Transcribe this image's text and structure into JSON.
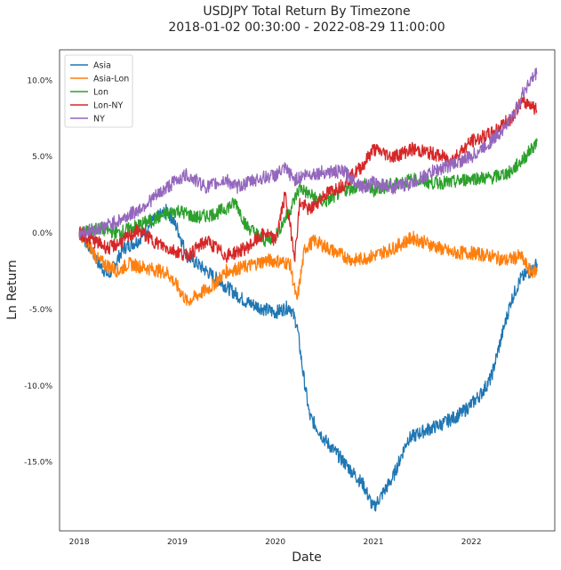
{
  "chart_data": {
    "type": "line",
    "title": "USDJPY Total Return By Timezone",
    "subtitle": "2018-01-02 00:30:00 - 2022-08-29 11:00:00",
    "xlabel": "Date",
    "ylabel": "Ln Return",
    "xlim": [
      2017.8,
      2022.85
    ],
    "ylim": [
      -19.5,
      12.0
    ],
    "x_ticks": [
      2018,
      2019,
      2020,
      2021,
      2022
    ],
    "x_tick_labels": [
      "2018",
      "2019",
      "2020",
      "2021",
      "2022"
    ],
    "y_ticks": [
      10,
      5,
      0,
      -5,
      -10,
      -15
    ],
    "y_tick_labels": [
      "10.0%",
      "5.0%",
      "0.0%",
      "-5.0%",
      "-10.0%",
      "-15.0%"
    ],
    "grid": false,
    "legend_position": "top-left",
    "series": [
      {
        "name": "Asia",
        "color": "#1f77b4",
        "x": [
          2018.0,
          2018.1,
          2018.2,
          2018.3,
          2018.45,
          2018.6,
          2018.75,
          2018.9,
          2019.0,
          2019.1,
          2019.3,
          2019.5,
          2019.7,
          2019.9,
          2020.0,
          2020.15,
          2020.22,
          2020.28,
          2020.35,
          2020.5,
          2020.7,
          2020.9,
          2021.0,
          2021.2,
          2021.35,
          2021.5,
          2021.7,
          2021.9,
          2022.0,
          2022.1,
          2022.2,
          2022.3,
          2022.4,
          2022.5,
          2022.6,
          2022.67
        ],
        "y": [
          0.0,
          -0.8,
          -2.0,
          -2.8,
          -1.0,
          -0.5,
          0.8,
          1.5,
          0.3,
          -1.5,
          -2.5,
          -3.5,
          -4.5,
          -5.0,
          -5.2,
          -4.8,
          -6.0,
          -9.0,
          -12.0,
          -13.5,
          -15.0,
          -16.5,
          -18.0,
          -16.0,
          -13.5,
          -13.0,
          -12.5,
          -11.8,
          -11.2,
          -10.5,
          -9.5,
          -7.0,
          -4.5,
          -3.0,
          -2.5,
          -2.0
        ]
      },
      {
        "name": "Asia-Lon",
        "color": "#ff7f0e",
        "x": [
          2018.0,
          2018.1,
          2018.2,
          2018.4,
          2018.5,
          2018.7,
          2018.9,
          2019.0,
          2019.1,
          2019.35,
          2019.5,
          2019.7,
          2019.9,
          2020.0,
          2020.15,
          2020.22,
          2020.3,
          2020.4,
          2020.6,
          2020.8,
          2021.0,
          2021.2,
          2021.4,
          2021.6,
          2021.8,
          2022.0,
          2022.2,
          2022.35,
          2022.5,
          2022.6,
          2022.67
        ],
        "y": [
          0.0,
          -0.8,
          -1.8,
          -2.5,
          -2.0,
          -2.3,
          -2.6,
          -3.5,
          -4.5,
          -3.5,
          -2.5,
          -2.2,
          -1.8,
          -1.8,
          -2.0,
          -4.5,
          -1.0,
          -0.5,
          -1.2,
          -1.8,
          -1.5,
          -1.0,
          -0.3,
          -0.8,
          -1.3,
          -1.3,
          -1.5,
          -1.8,
          -1.5,
          -2.5,
          -2.5
        ]
      },
      {
        "name": "Lon",
        "color": "#2ca02c",
        "x": [
          2018.0,
          2018.2,
          2018.4,
          2018.6,
          2018.8,
          2019.0,
          2019.2,
          2019.4,
          2019.6,
          2019.7,
          2019.9,
          2020.0,
          2020.15,
          2020.25,
          2020.35,
          2020.5,
          2020.7,
          2020.9,
          2021.0,
          2021.2,
          2021.4,
          2021.6,
          2021.8,
          2022.0,
          2022.2,
          2022.4,
          2022.55,
          2022.67
        ],
        "y": [
          0.0,
          0.3,
          0.0,
          0.5,
          1.0,
          1.5,
          1.0,
          1.3,
          2.0,
          0.5,
          -0.5,
          -0.2,
          1.5,
          3.0,
          2.5,
          2.0,
          2.8,
          3.2,
          2.8,
          3.2,
          3.5,
          3.3,
          3.3,
          3.6,
          3.6,
          4.0,
          5.0,
          6.0
        ]
      },
      {
        "name": "Lon-NY",
        "color": "#d62728",
        "x": [
          2018.0,
          2018.15,
          2018.3,
          2018.45,
          2018.6,
          2018.75,
          2018.9,
          2019.0,
          2019.1,
          2019.3,
          2019.5,
          2019.7,
          2019.9,
          2020.0,
          2020.1,
          2020.2,
          2020.25,
          2020.35,
          2020.5,
          2020.7,
          2020.9,
          2021.0,
          2021.2,
          2021.4,
          2021.6,
          2021.8,
          2022.0,
          2022.2,
          2022.3,
          2022.4,
          2022.5,
          2022.6,
          2022.67
        ],
        "y": [
          0.0,
          -0.5,
          -1.0,
          -0.5,
          0.2,
          -0.5,
          -1.0,
          -1.2,
          -1.5,
          -0.5,
          -1.5,
          -1.0,
          0.0,
          -0.5,
          2.5,
          -1.5,
          2.0,
          1.5,
          2.5,
          3.2,
          4.5,
          5.5,
          5.0,
          5.5,
          5.2,
          4.8,
          6.0,
          6.5,
          7.0,
          7.5,
          8.5,
          8.5,
          8.0
        ]
      },
      {
        "name": "NY",
        "color": "#9467bd",
        "x": [
          2018.0,
          2018.2,
          2018.4,
          2018.6,
          2018.8,
          2019.0,
          2019.1,
          2019.3,
          2019.5,
          2019.6,
          2019.8,
          2020.0,
          2020.1,
          2020.2,
          2020.3,
          2020.5,
          2020.7,
          2020.9,
          2021.0,
          2021.2,
          2021.4,
          2021.6,
          2021.8,
          2022.0,
          2022.2,
          2022.35,
          2022.45,
          2022.55,
          2022.67
        ],
        "y": [
          0.0,
          0.3,
          0.8,
          1.5,
          2.5,
          3.5,
          3.8,
          3.0,
          3.5,
          3.0,
          3.5,
          3.8,
          4.2,
          3.5,
          3.8,
          4.0,
          4.0,
          3.0,
          3.3,
          3.0,
          3.3,
          4.0,
          4.5,
          5.0,
          6.0,
          7.0,
          8.0,
          9.5,
          10.5
        ]
      }
    ]
  }
}
